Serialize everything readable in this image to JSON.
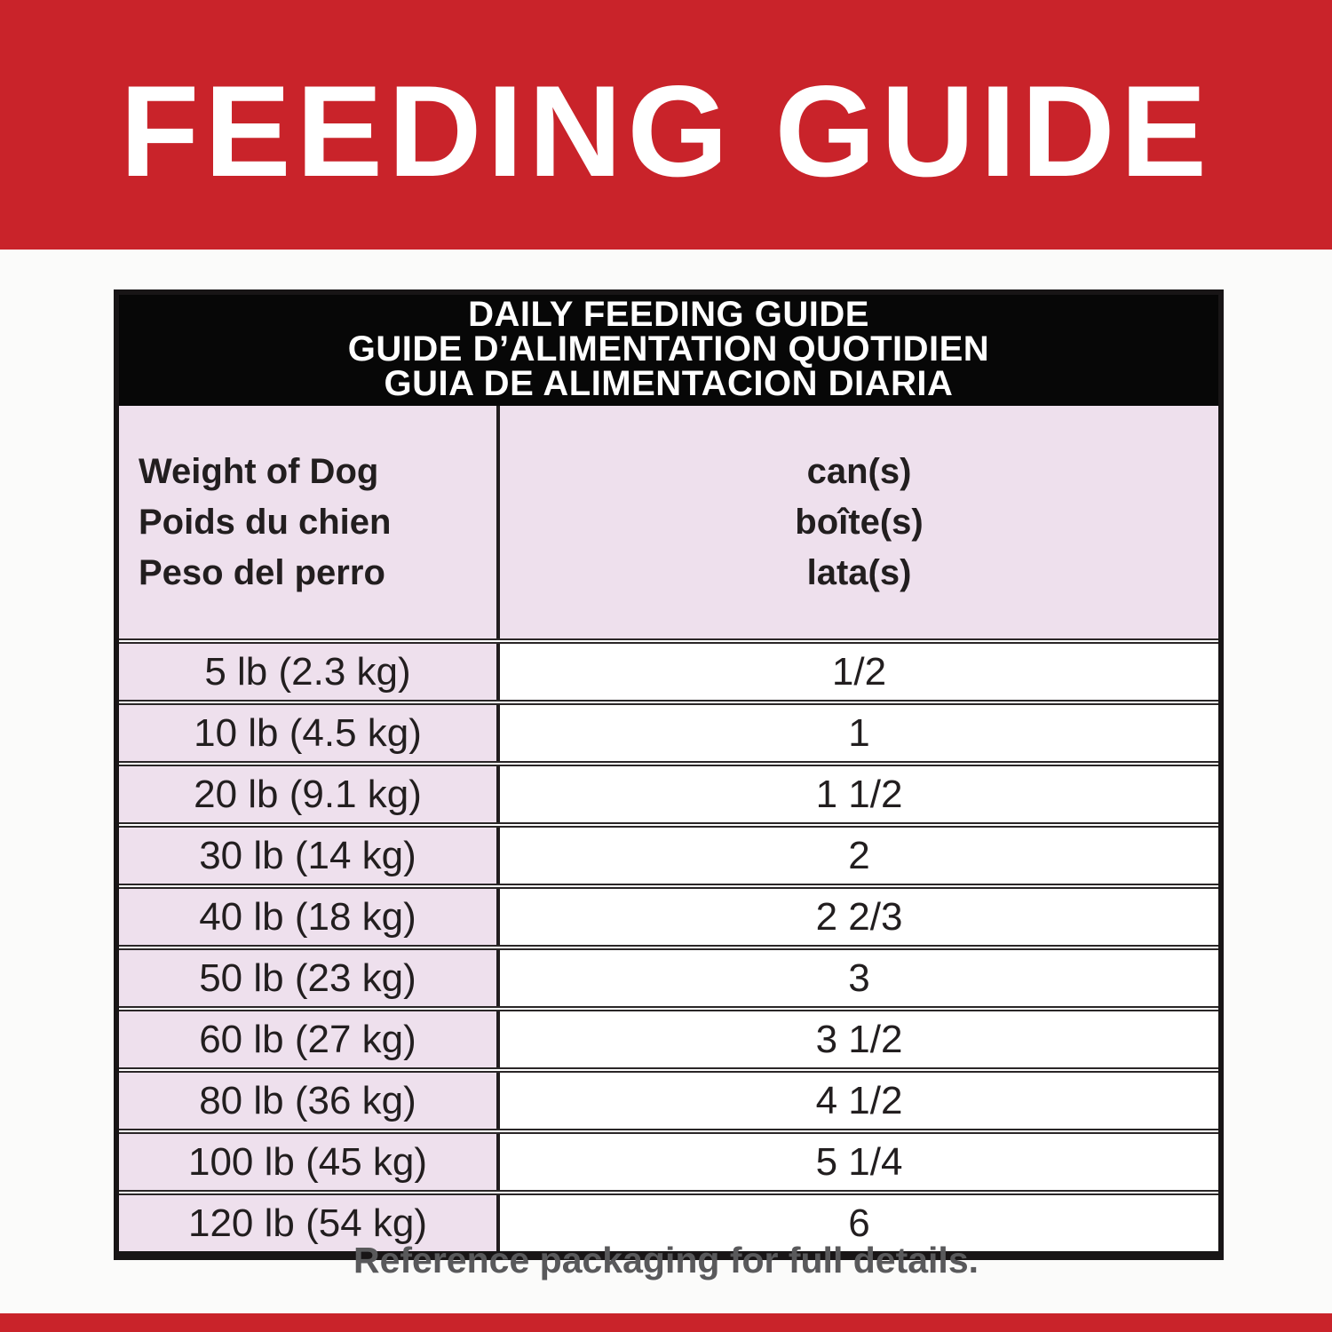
{
  "banner": {
    "title": "FEEDING GUIDE"
  },
  "table": {
    "title_lines": [
      "DAILY FEEDING GUIDE",
      "GUIDE D’ALIMENTATION QUOTIDIEN",
      "GUIA DE ALIMENTACION DIARIA"
    ],
    "columns": {
      "weight": {
        "lines": [
          "Weight of Dog",
          "Poids du chien",
          "Peso del perro"
        ]
      },
      "cans": {
        "lines": [
          "can(s)",
          "boîte(s)",
          "lata(s)"
        ]
      }
    },
    "rows": [
      {
        "weight": "5 lb (2.3 kg)",
        "cans": "1/2"
      },
      {
        "weight": "10 lb (4.5 kg)",
        "cans": "1"
      },
      {
        "weight": "20 lb (9.1 kg)",
        "cans": "1 1/2"
      },
      {
        "weight": "30 lb (14 kg)",
        "cans": "2"
      },
      {
        "weight": "40 lb (18 kg)",
        "cans": "2 2/3"
      },
      {
        "weight": "50 lb (23 kg)",
        "cans": "3"
      },
      {
        "weight": "60 lb (27 kg)",
        "cans": "3 1/2"
      },
      {
        "weight": "80 lb (36 kg)",
        "cans": "4 1/2"
      },
      {
        "weight": "100 lb (45 kg)",
        "cans": "5 1/4"
      },
      {
        "weight": "120 lb (54 kg)",
        "cans": "6"
      }
    ]
  },
  "footer": {
    "note": "Reference packaging for full details."
  },
  "colors": {
    "red": "#c9232a",
    "pink": "#eee0ed",
    "band_black": "#070707",
    "table_text": "#221e1f",
    "footer_gray": "#59595b",
    "white": "#ffffff"
  }
}
